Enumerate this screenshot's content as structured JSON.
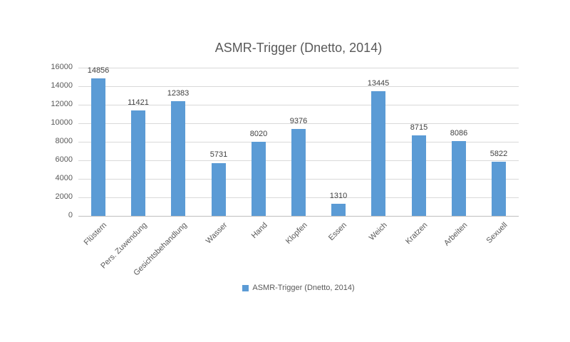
{
  "chart_data": {
    "type": "bar",
    "title": "ASMR-Trigger (Dnetto, 2014)",
    "categories": [
      "Flüstern",
      "Pers. Zuwendung",
      "Gesichtsbehandlung",
      "Wasser",
      "Hand",
      "Klopfen",
      "Essen",
      "Weich",
      "Kratzen",
      "Arbeiten",
      "Sexuell"
    ],
    "series": [
      {
        "name": "ASMR-Trigger (Dnetto, 2014)",
        "values": [
          14856,
          11421,
          12383,
          5731,
          8020,
          9376,
          1310,
          13445,
          8715,
          8086,
          5822
        ]
      }
    ],
    "data_labels": [
      14856,
      11421,
      12383,
      5731,
      8020,
      9376,
      1310,
      13445,
      8715,
      8086,
      5822
    ],
    "xlabel": "",
    "ylabel": "",
    "ylim": [
      0,
      16000
    ],
    "yticks": [
      0,
      2000,
      4000,
      6000,
      8000,
      10000,
      12000,
      14000,
      16000
    ],
    "grid": true,
    "legend_position": "bottom"
  },
  "legend": {
    "label": "ASMR-Trigger (Dnetto, 2014)"
  },
  "colors": {
    "bar": "#5b9bd5",
    "title_text": "#595959",
    "axis_text": "#595959",
    "data_label_text": "#404040",
    "gridline": "#d9d9d9",
    "axis_line": "#bfbfbf",
    "background": "#ffffff"
  }
}
